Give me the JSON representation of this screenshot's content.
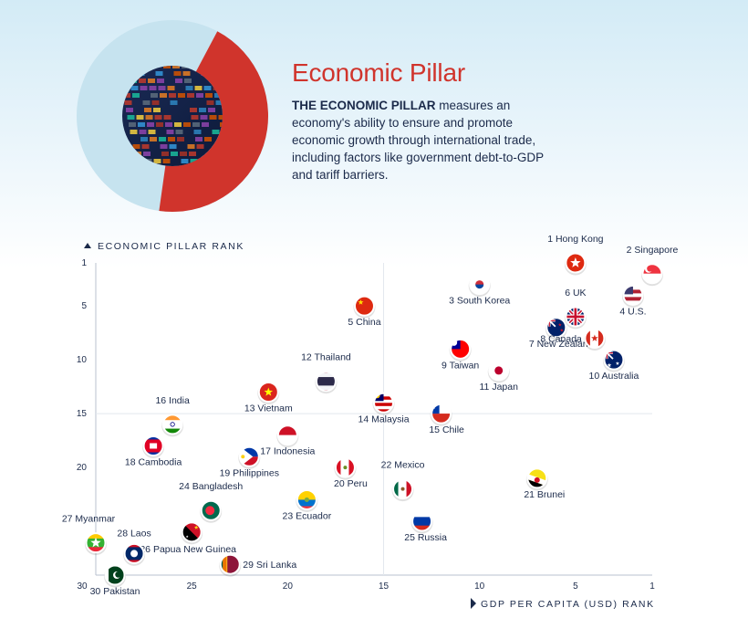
{
  "header": {
    "title": "Economic Pillar",
    "desc_bold": "THE ECONOMIC PILLAR",
    "desc_rest": " measures an economy's ability to ensure and promote economic growth through international trade, including factors like government debt-to-GDP and tariff barriers."
  },
  "colors": {
    "accent_red": "#d0342c",
    "ring_light": "#c6e3ef",
    "axis_navy": "#1b2a4a"
  },
  "chart_data": {
    "type": "scatter",
    "ylabel": "ECONOMIC PILLAR RANK",
    "xlabel": "GDP PER CAPITA (USD) RANK",
    "xlim": [
      30,
      1
    ],
    "ylim": [
      1,
      30
    ],
    "x_ticks": [
      30,
      25,
      20,
      15,
      10,
      5,
      1
    ],
    "y_ticks": [
      1,
      5,
      10,
      15,
      20
    ],
    "grid": "midlines",
    "points": [
      {
        "rank": 1,
        "country": "Hong Kong",
        "label": "1 Hong Kong",
        "gdp_rank": 5,
        "flag": "hong-kong-flag"
      },
      {
        "rank": 2,
        "country": "Singapore",
        "label": "2 Singapore",
        "gdp_rank": 1,
        "flag": "singapore-flag"
      },
      {
        "rank": 3,
        "country": "South Korea",
        "label": "3 South Korea",
        "gdp_rank": 10,
        "flag": "south-korea-flag"
      },
      {
        "rank": 4,
        "country": "U.S.",
        "label": "4 U.S.",
        "gdp_rank": 2,
        "flag": "us-flag"
      },
      {
        "rank": 5,
        "country": "China",
        "label": "5 China",
        "gdp_rank": 16,
        "flag": "china-flag"
      },
      {
        "rank": 6,
        "country": "UK",
        "label": "6 UK",
        "gdp_rank": 5,
        "flag": "uk-flag"
      },
      {
        "rank": 7,
        "country": "New Zealand",
        "label": "7 New Zealand",
        "gdp_rank": 6,
        "flag": "new-zealand-flag"
      },
      {
        "rank": 8,
        "country": "Canada",
        "label": "8 Canada",
        "gdp_rank": 4,
        "flag": "canada-flag"
      },
      {
        "rank": 9,
        "country": "Taiwan",
        "label": "9 Taiwan",
        "gdp_rank": 11,
        "flag": "taiwan-flag"
      },
      {
        "rank": 10,
        "country": "Australia",
        "label": "10 Australia",
        "gdp_rank": 3,
        "flag": "australia-flag"
      },
      {
        "rank": 11,
        "country": "Japan",
        "label": "11 Japan",
        "gdp_rank": 9,
        "flag": "japan-flag"
      },
      {
        "rank": 12,
        "country": "Thailand",
        "label": "12 Thailand",
        "gdp_rank": 18,
        "flag": "thailand-flag"
      },
      {
        "rank": 13,
        "country": "Vietnam",
        "label": "13 Vietnam",
        "gdp_rank": 21,
        "flag": "vietnam-flag"
      },
      {
        "rank": 14,
        "country": "Malaysia",
        "label": "14 Malaysia",
        "gdp_rank": 15,
        "flag": "malaysia-flag"
      },
      {
        "rank": 15,
        "country": "Chile",
        "label": "15 Chile",
        "gdp_rank": 12,
        "flag": "chile-flag"
      },
      {
        "rank": 16,
        "country": "India",
        "label": "16 India",
        "gdp_rank": 26,
        "flag": "india-flag"
      },
      {
        "rank": 17,
        "country": "Indonesia",
        "label": "17 Indonesia",
        "gdp_rank": 20,
        "flag": "indonesia-flag"
      },
      {
        "rank": 18,
        "country": "Cambodia",
        "label": "18 Cambodia",
        "gdp_rank": 27,
        "flag": "cambodia-flag"
      },
      {
        "rank": 19,
        "country": "Philippines",
        "label": "19 Philippines",
        "gdp_rank": 22,
        "flag": "philippines-flag"
      },
      {
        "rank": 20,
        "country": "Peru",
        "label": "20 Peru",
        "gdp_rank": 17,
        "flag": "peru-flag"
      },
      {
        "rank": 21,
        "country": "Brunei",
        "label": "21 Brunei",
        "gdp_rank": 7,
        "flag": "brunei-flag"
      },
      {
        "rank": 22,
        "country": "Mexico",
        "label": "22 Mexico",
        "gdp_rank": 14,
        "flag": "mexico-flag"
      },
      {
        "rank": 23,
        "country": "Ecuador",
        "label": "23 Ecuador",
        "gdp_rank": 19,
        "flag": "ecuador-flag"
      },
      {
        "rank": 24,
        "country": "Bangladesh",
        "label": "24 Bangladesh",
        "gdp_rank": 24,
        "flag": "bangladesh-flag"
      },
      {
        "rank": 25,
        "country": "Russia",
        "label": "25 Russia",
        "gdp_rank": 13,
        "flag": "russia-flag"
      },
      {
        "rank": 26,
        "country": "Papua New Guinea",
        "label": "26 Papua New Guinea",
        "gdp_rank": 25,
        "flag": "papua-new-guinea-flag"
      },
      {
        "rank": 27,
        "country": "Myanmar",
        "label": "27 Myanmar",
        "gdp_rank": 30,
        "flag": "myanmar-flag"
      },
      {
        "rank": 28,
        "country": "Laos",
        "label": "28 Laos",
        "gdp_rank": 28,
        "flag": "laos-flag"
      },
      {
        "rank": 29,
        "country": "Sri Lanka",
        "label": "29 Sri Lanka",
        "gdp_rank": 23,
        "flag": "sri-lanka-flag"
      },
      {
        "rank": 30,
        "country": "Pakistan",
        "label": "30 Pakistan",
        "gdp_rank": 29,
        "flag": "pakistan-flag"
      }
    ]
  }
}
